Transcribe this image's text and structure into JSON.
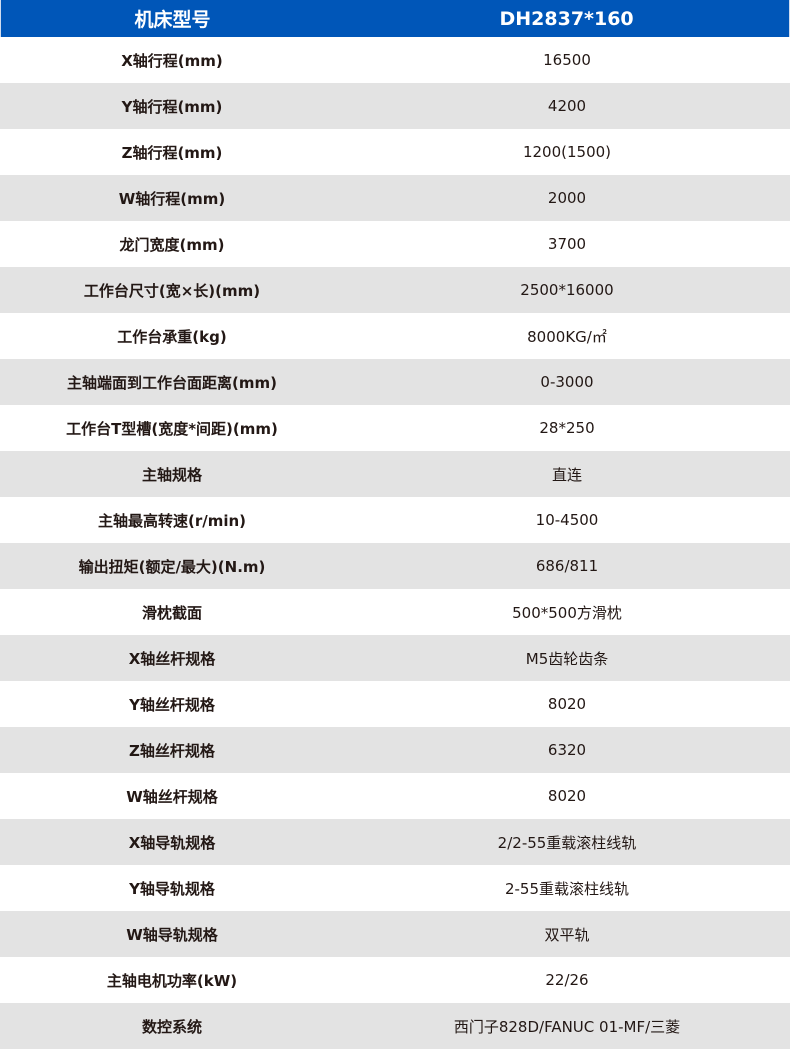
{
  "header": {
    "label": "机床型号",
    "value": "DH2837*160"
  },
  "rows": [
    {
      "label": "X轴行程(mm)",
      "value": "16500"
    },
    {
      "label": "Y轴行程(mm)",
      "value": "4200"
    },
    {
      "label": "Z轴行程(mm)",
      "value": "1200(1500)"
    },
    {
      "label": "W轴行程(mm)",
      "value": "2000"
    },
    {
      "label": "龙门宽度(mm)",
      "value": "3700"
    },
    {
      "label": "工作台尺寸(宽×长)(mm)",
      "value": "2500*16000"
    },
    {
      "label": "工作台承重(kg)",
      "value": "8000KG/㎡"
    },
    {
      "label": "主轴端面到工作台面距离(mm)",
      "value": "0-3000"
    },
    {
      "label": "工作台T型槽(宽度*间距)(mm)",
      "value": "28*250"
    },
    {
      "label": "主轴规格",
      "value": "直连"
    },
    {
      "label": "主轴最高转速(r/min)",
      "value": "10-4500"
    },
    {
      "label": "输出扭矩(额定/最大)(N.m)",
      "value": "686/811"
    },
    {
      "label": "滑枕截面",
      "value": "500*500方滑枕"
    },
    {
      "label": "X轴丝杆规格",
      "value": "M5齿轮齿条"
    },
    {
      "label": "Y轴丝杆规格",
      "value": "8020"
    },
    {
      "label": "Z轴丝杆规格",
      "value": "6320"
    },
    {
      "label": "W轴丝杆规格",
      "value": "8020"
    },
    {
      "label": "X轴导轨规格",
      "value": "2/2-55重载滚柱线轨"
    },
    {
      "label": "Y轴导轨规格",
      "value": "2-55重载滚柱线轨"
    },
    {
      "label": "W轴导轨规格",
      "value": "双平轨"
    },
    {
      "label": "主轴电机功率(kW)",
      "value": "22/26"
    },
    {
      "label": "数控系统",
      "value": "西门子828D/FANUC 01-MF/三菱"
    }
  ]
}
